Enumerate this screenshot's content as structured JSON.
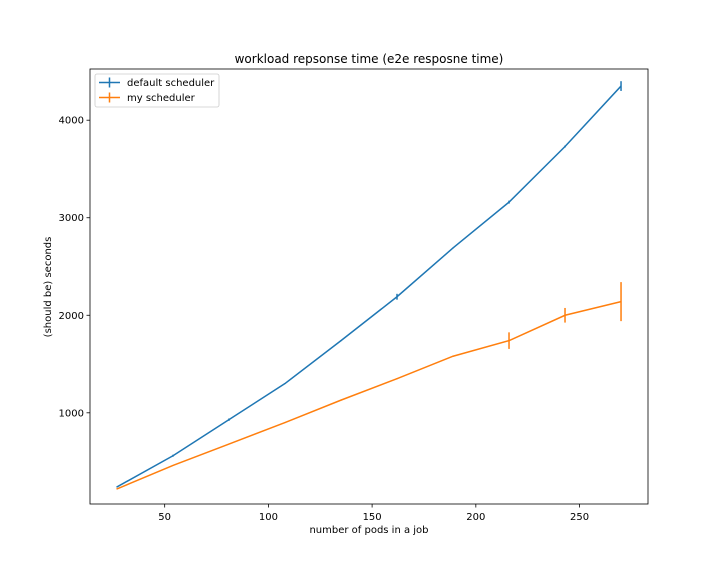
{
  "chart_data": {
    "type": "line",
    "title": "workload repsonse time (e2e resposne time)",
    "xlabel": "number of pods in a job",
    "ylabel": "(should be) seconds",
    "xlim": [
      14,
      283
    ],
    "ylim": [
      65,
      4525
    ],
    "xticks": [
      50,
      100,
      150,
      200,
      250
    ],
    "yticks": [
      1000,
      2000,
      3000,
      4000
    ],
    "grid": false,
    "legend_position": "top-left",
    "series": [
      {
        "name": "default scheduler",
        "color": "#1f77b4",
        "x": [
          27,
          54,
          81,
          108,
          135,
          162,
          189,
          216,
          243,
          270
        ],
        "y": [
          240,
          560,
          930,
          1300,
          1740,
          2190,
          2690,
          3160,
          3730,
          4350
        ],
        "yerr": [
          5,
          10,
          12,
          5,
          5,
          30,
          5,
          15,
          10,
          50
        ]
      },
      {
        "name": "my scheduler",
        "color": "#ff7f0e",
        "x": [
          27,
          54,
          81,
          108,
          135,
          162,
          189,
          216,
          243,
          270
        ],
        "y": [
          220,
          460,
          680,
          900,
          1130,
          1350,
          1580,
          1740,
          2000,
          2140
        ],
        "yerr": [
          5,
          5,
          5,
          5,
          5,
          5,
          5,
          85,
          75,
          200
        ]
      }
    ]
  }
}
